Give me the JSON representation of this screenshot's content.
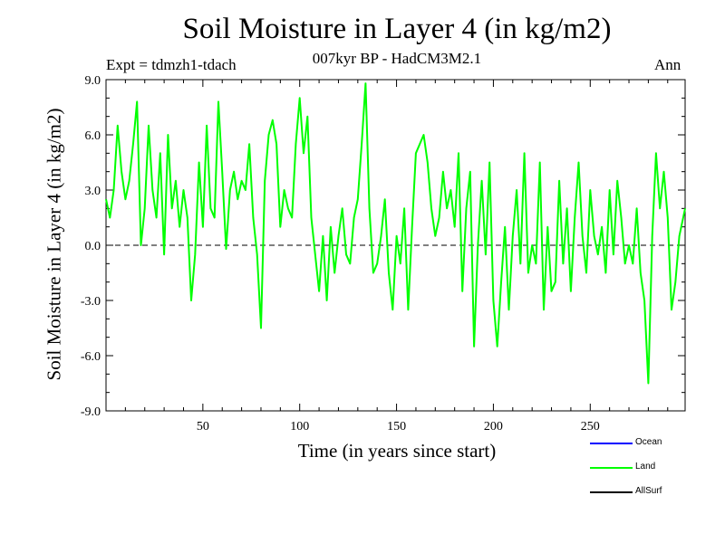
{
  "chart_data": {
    "type": "line",
    "title": "Soil Moisture in Layer 4 (in kg/m2)",
    "subtitle": "007kyr BP - HadCM3M2.1",
    "experiment": "Expt = tdmzh1-tdach",
    "season": "Ann",
    "xlabel": "Time (in years since start)",
    "ylabel": "Soil Moisture in Layer 4 (in kg/m2)",
    "xlim": [
      0,
      299
    ],
    "ylim": [
      -9.0,
      9.0
    ],
    "xticks": [
      50,
      100,
      150,
      200,
      250
    ],
    "yticks": [
      -9.0,
      -6.0,
      -3.0,
      0.0,
      3.0,
      6.0,
      9.0
    ],
    "ytick_labels": [
      "-9.0",
      "-6.0",
      "-3.0",
      "0.0",
      "3.0",
      "6.0",
      "9.0"
    ],
    "zero_line": "dashed",
    "legend": [
      {
        "name": "Ocean",
        "color": "#0000ff"
      },
      {
        "name": "Land",
        "color": "#00ff00"
      },
      {
        "name": "AllSurf",
        "color": "#000000"
      }
    ],
    "series": [
      {
        "name": "Land",
        "color": "#00ff00",
        "x": [
          0,
          2,
          4,
          6,
          8,
          10,
          12,
          14,
          16,
          18,
          20,
          22,
          24,
          26,
          28,
          30,
          32,
          34,
          36,
          38,
          40,
          42,
          44,
          46,
          48,
          50,
          52,
          54,
          56,
          58,
          60,
          62,
          64,
          66,
          68,
          70,
          72,
          74,
          76,
          78,
          80,
          82,
          84,
          86,
          88,
          90,
          92,
          94,
          96,
          98,
          100,
          102,
          104,
          106,
          108,
          110,
          112,
          114,
          116,
          118,
          120,
          122,
          124,
          126,
          128,
          130,
          132,
          134,
          136,
          138,
          140,
          142,
          144,
          146,
          148,
          150,
          152,
          154,
          156,
          158,
          160,
          162,
          164,
          166,
          168,
          170,
          172,
          174,
          176,
          178,
          180,
          182,
          184,
          186,
          188,
          190,
          192,
          194,
          196,
          198,
          200,
          202,
          204,
          206,
          208,
          210,
          212,
          214,
          216,
          218,
          220,
          222,
          224,
          226,
          228,
          230,
          232,
          234,
          236,
          238,
          240,
          242,
          244,
          246,
          248,
          250,
          252,
          254,
          256,
          258,
          260,
          262,
          264,
          266,
          268,
          270,
          272,
          274,
          276,
          278,
          280,
          282,
          284,
          286,
          288,
          290,
          292,
          294,
          296,
          299
        ],
        "values": [
          2.5,
          1.5,
          3.0,
          6.5,
          4.0,
          2.5,
          3.5,
          5.5,
          7.8,
          0.0,
          2.0,
          6.5,
          3.0,
          1.5,
          5.0,
          -0.5,
          6.0,
          2.0,
          3.5,
          1.0,
          3.0,
          1.5,
          -3.0,
          -0.5,
          4.5,
          1.0,
          6.5,
          2.0,
          1.5,
          7.8,
          4.0,
          -0.2,
          3.0,
          4.0,
          2.5,
          3.5,
          3.0,
          5.5,
          1.5,
          -0.5,
          -4.5,
          3.5,
          6.0,
          6.8,
          5.5,
          1.0,
          3.0,
          2.0,
          1.5,
          5.5,
          8.0,
          5.0,
          7.0,
          1.5,
          -0.5,
          -2.5,
          0.5,
          -3.0,
          1.0,
          -1.5,
          0.5,
          2.0,
          -0.5,
          -1.0,
          1.5,
          2.5,
          5.5,
          8.8,
          2.0,
          -1.5,
          -1.0,
          0.5,
          2.5,
          -1.5,
          -3.5,
          0.5,
          -1.0,
          2.0,
          -3.5,
          1.0,
          5.0,
          5.5,
          6.0,
          4.5,
          2.0,
          0.5,
          1.5,
          4.0,
          2.0,
          3.0,
          1.0,
          5.0,
          -2.5,
          2.0,
          4.0,
          -5.5,
          0.0,
          3.5,
          -0.5,
          4.5,
          -3.0,
          -5.5,
          -2.0,
          1.0,
          -3.5,
          0.5,
          3.0,
          -1.0,
          5.0,
          -1.5,
          0.0,
          -1.0,
          4.5,
          -3.5,
          1.0,
          -2.5,
          -2.0,
          3.5,
          -1.0,
          2.0,
          -2.5,
          1.5,
          4.5,
          0.5,
          -1.5,
          3.0,
          0.5,
          -0.5,
          1.0,
          -1.5,
          3.0,
          -0.5,
          3.5,
          1.5,
          -1.0,
          0.0,
          -1.0,
          2.0,
          -1.5,
          -3.0,
          -7.5,
          0.5,
          5.0,
          2.0,
          4.0,
          1.5,
          -3.5,
          -2.0,
          0.5,
          2.0
        ]
      }
    ]
  }
}
